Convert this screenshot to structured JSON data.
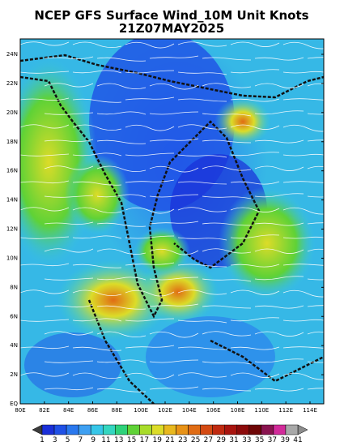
{
  "header": {
    "title": "NCEP GFS Surface Wind_10M Unit Knots",
    "subtitle": "21Z07MAY2025"
  },
  "map": {
    "lat_labels": [
      "24N",
      "22N",
      "20N",
      "18N",
      "16N",
      "14N",
      "12N",
      "10N",
      "8N",
      "6N",
      "4N",
      "2N",
      "EQ"
    ],
    "lon_labels": [
      "80E",
      "82E",
      "84E",
      "86E",
      "88E",
      "100E",
      "102E",
      "104E",
      "106E",
      "108E",
      "110E",
      "112E",
      "114E"
    ]
  },
  "colorbar": {
    "labels": [
      1,
      3,
      5,
      7,
      9,
      11,
      13,
      15,
      17,
      19,
      21,
      23,
      25,
      27,
      29,
      31,
      33,
      35,
      37,
      39,
      41
    ],
    "colors": [
      "#1a2fd8",
      "#1f50e6",
      "#2a78ee",
      "#3ea0f2",
      "#36c6e8",
      "#34d6c0",
      "#2ed27a",
      "#5fd236",
      "#a8dc2a",
      "#dcdc28",
      "#e8b81e",
      "#e89216",
      "#e06c14",
      "#d44a12",
      "#c02a10",
      "#a8140e",
      "#8c0a0a",
      "#6e0606",
      "#8a1450",
      "#d22a9a",
      "#a8a8a8"
    ],
    "under_color": "#3c3c3c",
    "over_color": "#8c8c8c"
  }
}
